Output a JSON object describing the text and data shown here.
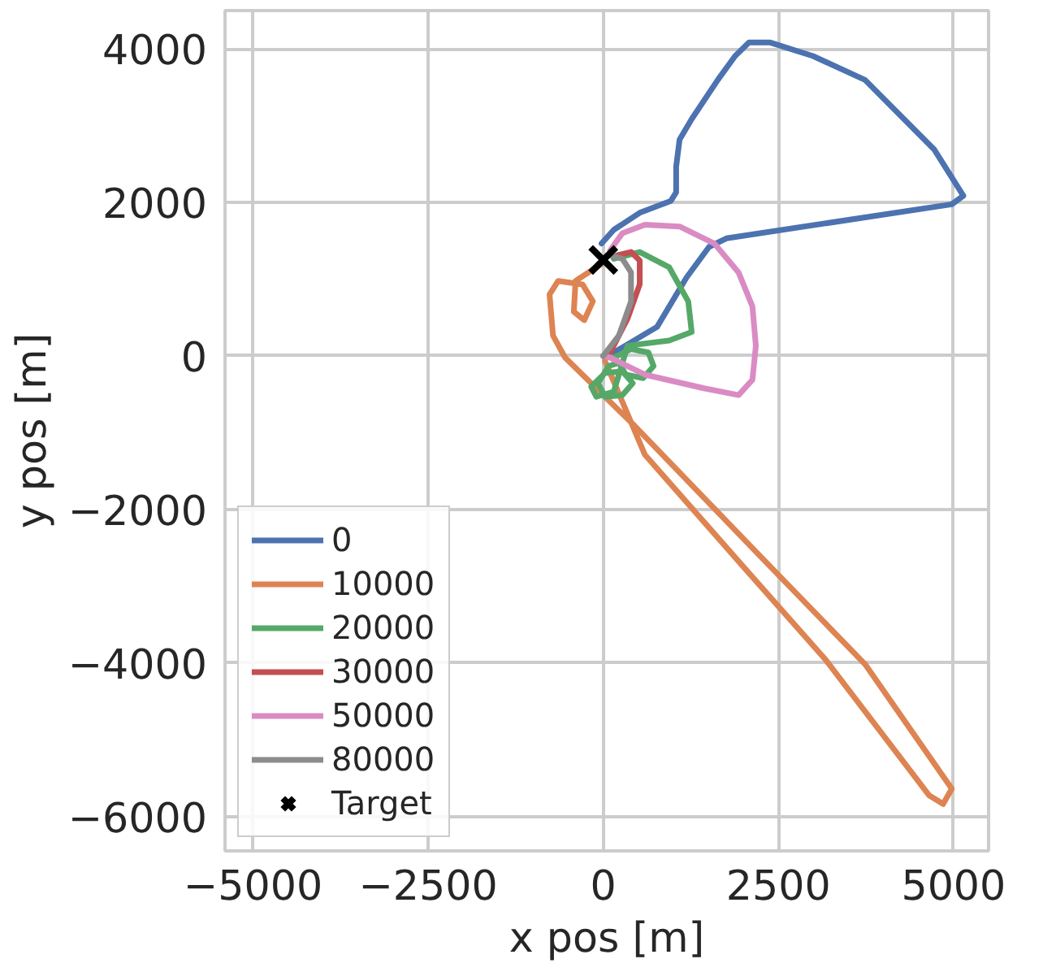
{
  "chart_data": {
    "type": "line",
    "xlabel": "x pos [m]",
    "ylabel": "y pos [m]",
    "xlim": [
      -5400,
      5500
    ],
    "ylim": [
      -6450,
      4500
    ],
    "xticks": [
      {
        "value": -5000,
        "label": "−5000"
      },
      {
        "value": -2500,
        "label": "−2500"
      },
      0,
      2500,
      5000
    ],
    "yticks": [
      {
        "value": -6000,
        "label": "−6000"
      },
      {
        "value": -4000,
        "label": "−4000"
      },
      {
        "value": -2000,
        "label": "−2000"
      },
      0,
      2000,
      4000
    ],
    "grid": true,
    "legend": "bottom left",
    "line_style": "solid",
    "series": [
      {
        "name": "0",
        "color": "#4c72b0",
        "x": [
          0,
          150,
          767,
          1188,
          1510,
          1757,
          4975,
          5140,
          4727,
          3737,
          2995,
          2376,
          2079,
          1881,
          1634,
          1262,
          1089,
          1040,
          1040,
          965,
          520,
          150,
          -25
        ],
        "values": [
          0,
          44,
          377,
          1021,
          1421,
          1532,
          1976,
          2087,
          2686,
          3596,
          3907,
          4085,
          4085,
          3907,
          3596,
          3086,
          2819,
          2464,
          2131,
          2020,
          1865,
          1643,
          1465
        ]
      },
      {
        "name": "10000",
        "color": "#dd8452",
        "x": [
          25,
          594,
          2005,
          3168,
          4653,
          4851,
          4975,
          3737,
          2252,
          446,
          -545,
          -718,
          -767,
          -644,
          -297,
          -149,
          -272,
          -421,
          -396,
          -25
        ],
        "values": [
          -67,
          -1288,
          -2753,
          -3952,
          -5728,
          -5839,
          -5639,
          -4018,
          -2620,
          -910,
          -22,
          266,
          799,
          977,
          932,
          710,
          466,
          577,
          977,
          1199
        ]
      },
      {
        "name": "20000",
        "color": "#55a868",
        "x": [
          0,
          149,
          396,
          644,
          718,
          569,
          322,
          223,
          74,
          -74,
          25,
          272,
          421,
          272,
          25,
          -173,
          -99,
          149,
          347,
          941,
          1262,
          1213,
          941,
          520,
          149
        ],
        "values": [
          0,
          -22,
          89,
          44,
          -133,
          -289,
          -244,
          -89,
          -133,
          -355,
          -533,
          -511,
          -355,
          -200,
          -222,
          -400,
          -533,
          -466,
          133,
          200,
          311,
          710,
          1154,
          1354,
          1265
        ]
      },
      {
        "name": "30000",
        "color": "#c44e52",
        "x": [
          0,
          99,
          347,
          520,
          520,
          396,
          198
        ],
        "values": [
          0,
          44,
          488,
          932,
          1243,
          1354,
          1310
        ]
      },
      {
        "name": "50000",
        "color": "#da8bc3",
        "x": [
          0,
          99,
          594,
          1436,
          1931,
          2129,
          2178,
          2129,
          1931,
          1584,
          1089,
          594,
          272,
          99
        ],
        "values": [
          0,
          -22,
          -244,
          -422,
          -511,
          -311,
          133,
          644,
          1088,
          1465,
          1687,
          1709,
          1598,
          1376
        ]
      },
      {
        "name": "80000",
        "color": "#8c8c8c",
        "x": [
          0,
          223,
          396,
          396,
          272,
          99
        ],
        "values": [
          0,
          266,
          710,
          1088,
          1265,
          1310
        ]
      },
      {
        "name": "Target",
        "type": "scatter",
        "marker": "cross",
        "color": "#000000",
        "x": [
          0
        ],
        "values": [
          1250
        ]
      }
    ]
  }
}
